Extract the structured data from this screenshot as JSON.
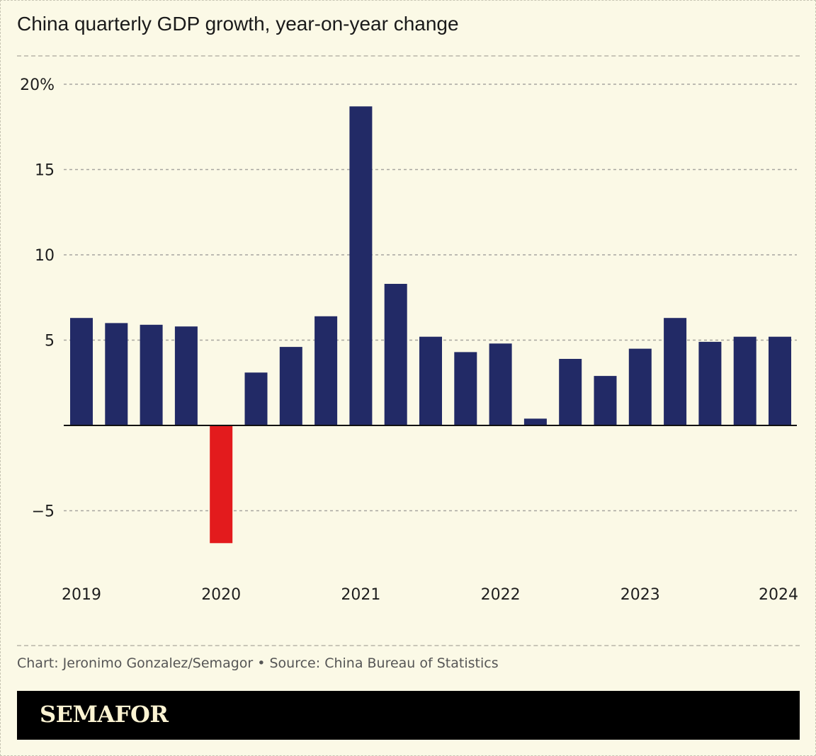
{
  "title": "China quarterly GDP growth, year-on-year change",
  "credit": "Chart: Jeronimo Gonzalez/Semagor • Source: China Bureau of Statistics",
  "brand": "SEMAFOR",
  "colors": {
    "positive": "#222a66",
    "negative": "#e31b1d",
    "background": "#fbf9e6",
    "grid": "#a8a6a0"
  },
  "chart_data": {
    "type": "bar",
    "title": "China quarterly GDP growth, year-on-year change",
    "xlabel": "",
    "ylabel": "",
    "ylim": [
      -8,
      20
    ],
    "grid": true,
    "legend": "none",
    "yticks": [
      {
        "value": 20,
        "label": "20%"
      },
      {
        "value": 15,
        "label": "15"
      },
      {
        "value": 10,
        "label": "10"
      },
      {
        "value": 5,
        "label": "5"
      },
      {
        "value": -5,
        "label": "−5"
      }
    ],
    "xticks": [
      "2019",
      "2020",
      "2021",
      "2022",
      "2023",
      "2024"
    ],
    "categories": [
      "2019 Q1",
      "2019 Q2",
      "2019 Q3",
      "2019 Q4",
      "2020 Q1",
      "2020 Q2",
      "2020 Q3",
      "2020 Q4",
      "2021 Q1",
      "2021 Q2",
      "2021 Q3",
      "2021 Q4",
      "2022 Q1",
      "2022 Q2",
      "2022 Q3",
      "2022 Q4",
      "2023 Q1",
      "2023 Q2",
      "2023 Q3",
      "2023 Q4",
      "2024 Q1"
    ],
    "values": [
      6.3,
      6.0,
      5.9,
      5.8,
      -6.9,
      3.1,
      4.6,
      6.4,
      18.7,
      8.3,
      5.2,
      4.3,
      4.8,
      0.4,
      3.9,
      2.9,
      4.5,
      6.3,
      4.9,
      5.2,
      5.2
    ]
  }
}
